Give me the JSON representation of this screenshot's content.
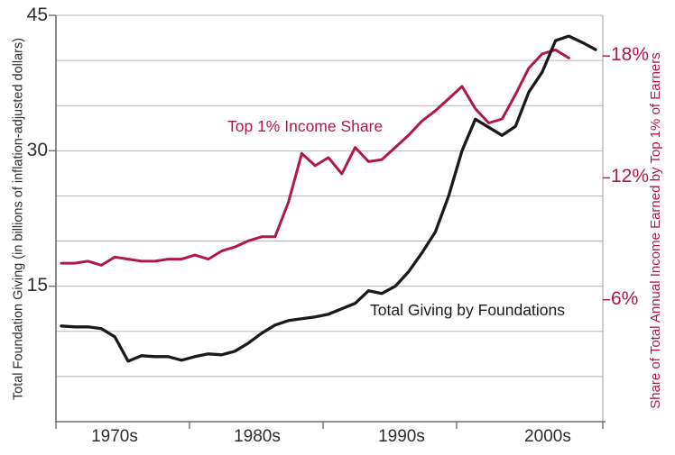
{
  "chart_data": {
    "type": "line",
    "title": "",
    "legend_position": "inline-annotations",
    "grid": true,
    "background": "#ffffff",
    "gridline_color": "#b7b7b7",
    "axis_color": "#6f6f6f",
    "left_axis": {
      "label": "Total Foundation Giving (in billions of inflation-adjusted dollars)",
      "range": [
        0,
        45
      ],
      "gridline_step": 5,
      "ticks": [
        {
          "value": 45,
          "label": "45"
        },
        {
          "value": 30,
          "label": "30"
        },
        {
          "value": 15,
          "label": "15"
        }
      ]
    },
    "right_axis": {
      "label": "Share of Total Annual Income Earned by Top 1% of Earners",
      "range": [
        0,
        20
      ],
      "color": "#b11748",
      "ticks": [
        {
          "value": 18,
          "label": "18%"
        },
        {
          "value": 12,
          "label": "12%"
        },
        {
          "value": 6,
          "label": "6%"
        }
      ]
    },
    "x_axis": {
      "range_years": [
        1970,
        2011
      ],
      "decade_labels": [
        "1970s",
        "1980s",
        "1990s",
        "2000s"
      ]
    },
    "series": [
      {
        "name": "Top 1% Income Share",
        "color": "#b11748",
        "axis": "right",
        "unit": "% of total annual income",
        "start_year": 1970,
        "values": [
          7.8,
          7.8,
          7.9,
          7.7,
          8.1,
          8.0,
          7.9,
          7.9,
          8.0,
          8.0,
          8.2,
          8.0,
          8.4,
          8.6,
          8.9,
          9.1,
          9.1,
          10.8,
          13.2,
          12.6,
          13.0,
          12.2,
          13.5,
          12.8,
          12.9,
          13.5,
          14.1,
          14.8,
          15.3,
          15.9,
          16.5,
          15.4,
          14.7,
          14.9,
          16.1,
          17.4,
          18.1,
          18.3,
          17.9
        ]
      },
      {
        "name": "Total Giving by Foundations",
        "color": "#1a1a1a",
        "axis": "left",
        "unit": "billions of inflation-adjusted dollars",
        "start_year": 1970,
        "values": [
          10.6,
          10.5,
          10.5,
          10.3,
          9.4,
          6.7,
          7.3,
          7.2,
          7.2,
          6.8,
          7.2,
          7.5,
          7.4,
          7.8,
          8.7,
          9.8,
          10.7,
          11.2,
          11.4,
          11.6,
          11.9,
          12.5,
          13.1,
          14.5,
          14.2,
          15.0,
          16.6,
          18.7,
          21.0,
          25.0,
          30.0,
          33.5,
          32.6,
          31.7,
          32.7,
          36.5,
          38.7,
          42.2,
          42.7,
          42.0,
          41.2
        ]
      }
    ]
  }
}
